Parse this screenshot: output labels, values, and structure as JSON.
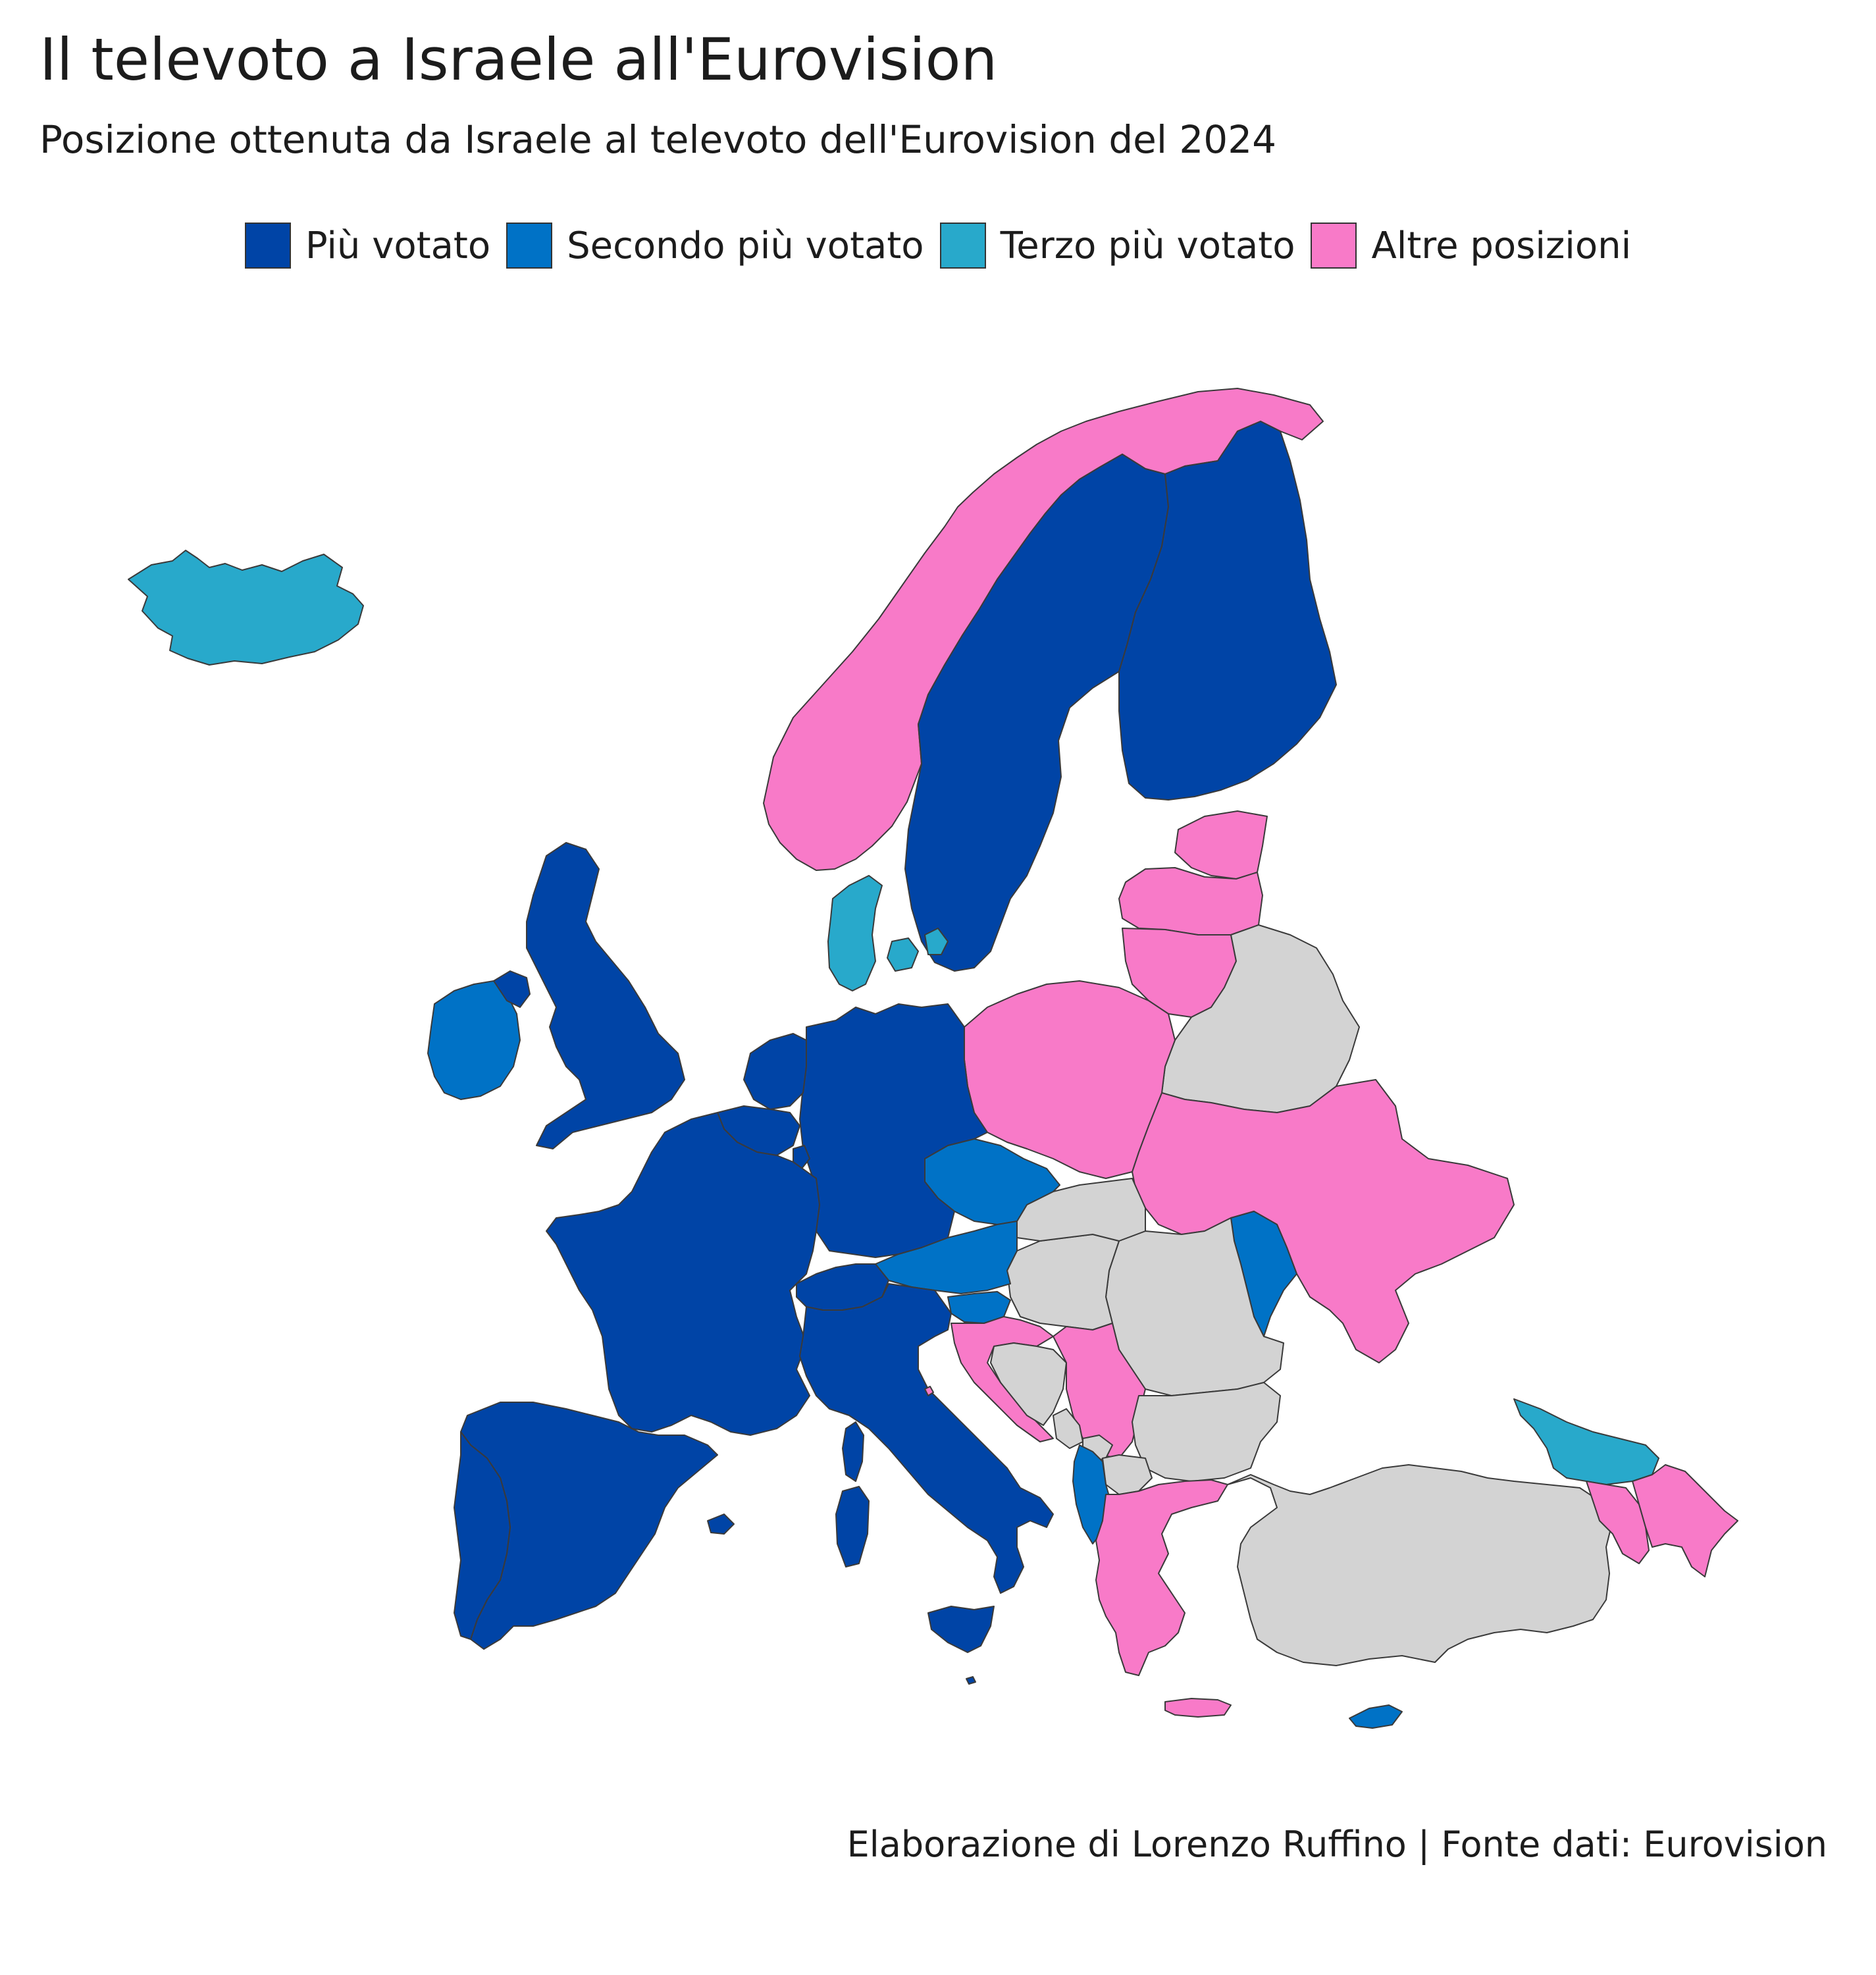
{
  "header": {
    "title": "Il televoto a Israele all'Eurovision",
    "subtitle": "Posizione ottenuta da Israele al televoto dell'Eurovision del 2024"
  },
  "legend": {
    "items": [
      {
        "label": "Più votato",
        "color": "#0044a6"
      },
      {
        "label": "Secondo più votato",
        "color": "#0072c6"
      },
      {
        "label": "Terzo più votato",
        "color": "#28a9cb"
      },
      {
        "label": "Altre posizioni",
        "color": "#f87ac8"
      }
    ],
    "no_data_color": "#d3d3d3"
  },
  "map_data": {
    "type": "choropleth",
    "categories": {
      "first": "Più votato",
      "second": "Secondo più votato",
      "third": "Terzo più votato",
      "other": "Altre posizioni"
    },
    "countries": {
      "first": [
        "Sweden",
        "Finland",
        "United Kingdom",
        "France",
        "Spain",
        "Portugal",
        "Italy",
        "Germany",
        "Netherlands",
        "Belgium",
        "Luxembourg",
        "Switzerland",
        "Malta"
      ],
      "second": [
        "Ireland",
        "Czechia",
        "Austria",
        "Slovenia",
        "Moldova",
        "Albania",
        "Cyprus"
      ],
      "third": [
        "Iceland",
        "Denmark",
        "Georgia"
      ],
      "other": [
        "Norway",
        "Estonia",
        "Latvia",
        "Lithuania",
        "Poland",
        "Ukraine",
        "Croatia",
        "Serbia",
        "Greece",
        "Armenia",
        "Azerbaijan",
        "San Marino"
      ]
    }
  },
  "footer": {
    "caption": "Elaborazione di Lorenzo Ruffino | Fonte dati: Eurovision"
  }
}
